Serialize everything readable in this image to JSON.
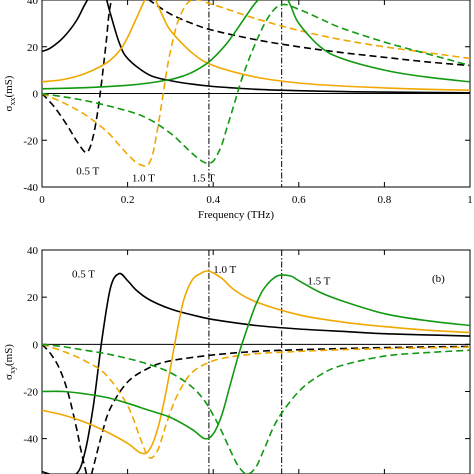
{
  "colors": {
    "0.5 T": "#000000",
    "1.0 T": "#f0a800",
    "1.5 T": "#119911"
  },
  "chart_data": [
    {
      "type": "line",
      "title": "",
      "xlabel": "Frequency (THz)",
      "ylabel": "σ_xx (mS)",
      "ylabel_main": "σ",
      "ylabel_sub": "xx",
      "ylabel_unit": "(mS)",
      "xlim": [
        0,
        1
      ],
      "ylim": [
        -40,
        40
      ],
      "xticks": [
        "0",
        "0.2",
        "0.4",
        "0.6",
        "0.8",
        "1"
      ],
      "yticks": [
        "40",
        "20",
        "0",
        "-20",
        "-40"
      ],
      "vlines": [
        0.39,
        0.56
      ],
      "annotations": [
        {
          "text": "0.5 T",
          "x": 0.08,
          "y": -33
        },
        {
          "text": "1.0 T",
          "x": 0.21,
          "y": -36
        },
        {
          "text": "1.5 T",
          "x": 0.35,
          "y": -36
        }
      ],
      "series": [
        {
          "field": "0.5 T",
          "component": "Re",
          "style": "solid",
          "x": [
            0,
            0.02,
            0.05,
            0.08,
            0.1,
            0.12,
            0.14,
            0.16,
            0.18,
            0.2,
            0.25,
            0.3,
            0.35,
            0.4,
            0.5,
            0.6,
            0.7,
            0.8,
            1.0
          ],
          "y": [
            18,
            19.5,
            24,
            31,
            38,
            44,
            46,
            34,
            22,
            15,
            8,
            5.5,
            4,
            3,
            1.8,
            1.2,
            0.8,
            0.6,
            0.3
          ]
        },
        {
          "field": "0.5 T",
          "component": "Im",
          "style": "dashed",
          "x": [
            0,
            0.03,
            0.06,
            0.08,
            0.1,
            0.11,
            0.12,
            0.13,
            0.14,
            0.15,
            0.16,
            0.18,
            0.2,
            0.25,
            0.3,
            0.35,
            0.4,
            0.5,
            0.6,
            0.7,
            0.8,
            0.9,
            1.0
          ],
          "y": [
            0,
            -6,
            -14,
            -20,
            -25,
            -24,
            -18,
            -8,
            6,
            22,
            38,
            48,
            46,
            40,
            34,
            30,
            27,
            23,
            20,
            17.5,
            15.5,
            13.5,
            12
          ]
        },
        {
          "field": "1.0 T",
          "component": "Re",
          "style": "solid",
          "x": [
            0,
            0.05,
            0.1,
            0.15,
            0.18,
            0.2,
            0.22,
            0.24,
            0.25,
            0.26,
            0.28,
            0.3,
            0.35,
            0.4,
            0.5,
            0.6,
            0.7,
            0.8,
            0.9,
            1.0
          ],
          "y": [
            5,
            6,
            8.5,
            13,
            18,
            24,
            32,
            40,
            44,
            42,
            34,
            27,
            17.5,
            12,
            7,
            4.5,
            3.2,
            2.4,
            1.8,
            1.4
          ]
        },
        {
          "field": "1.0 T",
          "component": "Im",
          "style": "dashed",
          "x": [
            0,
            0.05,
            0.1,
            0.15,
            0.18,
            0.2,
            0.22,
            0.24,
            0.25,
            0.26,
            0.27,
            0.28,
            0.29,
            0.3,
            0.32,
            0.35,
            0.4,
            0.5,
            0.6,
            0.7,
            0.8,
            0.9,
            1.0
          ],
          "y": [
            0,
            -4,
            -9,
            -16,
            -22,
            -26,
            -29.5,
            -31,
            -30,
            -25,
            -15,
            -4,
            8,
            18,
            32,
            40,
            38,
            32,
            27,
            23,
            20,
            17.5,
            15
          ]
        },
        {
          "field": "1.5 T",
          "component": "Re",
          "style": "solid",
          "x": [
            0,
            0.1,
            0.2,
            0.25,
            0.3,
            0.33,
            0.35,
            0.37,
            0.39,
            0.41,
            0.43,
            0.45,
            0.48,
            0.5,
            0.53,
            0.55,
            0.56,
            0.58,
            0.6,
            0.65,
            0.7,
            0.8,
            0.9,
            1.0
          ],
          "y": [
            2,
            2.5,
            3.5,
            4.5,
            6,
            7.5,
            9,
            11,
            13.5,
            17,
            21,
            26,
            34,
            39,
            44,
            46,
            45,
            38,
            30,
            20,
            15,
            10,
            7,
            5
          ]
        },
        {
          "field": "1.5 T",
          "component": "Im",
          "style": "dashed",
          "x": [
            0,
            0.1,
            0.2,
            0.25,
            0.3,
            0.33,
            0.35,
            0.37,
            0.38,
            0.39,
            0.4,
            0.41,
            0.42,
            0.43,
            0.44,
            0.45,
            0.47,
            0.5,
            0.53,
            0.56,
            0.6,
            0.65,
            0.7,
            0.8,
            0.9,
            1.0
          ],
          "y": [
            0,
            -3,
            -7.5,
            -11,
            -17,
            -22,
            -25.5,
            -28.5,
            -29.5,
            -29.8,
            -29,
            -26,
            -22,
            -16,
            -10,
            -4,
            8,
            22,
            33,
            38,
            36,
            32,
            28,
            22,
            17,
            12
          ]
        }
      ]
    },
    {
      "type": "line",
      "title": "",
      "xlabel": "",
      "ylabel": "σ_xy (mS)",
      "ylabel_main": "σ",
      "ylabel_sub": "xy",
      "ylabel_unit": "(mS)",
      "xlim": [
        0,
        1
      ],
      "ylim": [
        -55,
        40
      ],
      "xticks": [],
      "yticks": [
        "40",
        "20",
        "0",
        "-20",
        "-40"
      ],
      "vlines": [
        0.39,
        0.56
      ],
      "panel_label": "(b)",
      "annotations": [
        {
          "text": "0.5 T",
          "x": 0.07,
          "y": 30
        },
        {
          "text": "1.0 T",
          "x": 0.4,
          "y": 32
        },
        {
          "text": "1.5 T",
          "x": 0.62,
          "y": 27
        }
      ],
      "series": [
        {
          "field": "0.5 T",
          "component": "Re",
          "style": "solid",
          "x": [
            0,
            0.04,
            0.08,
            0.1,
            0.12,
            0.14,
            0.16,
            0.18,
            0.2,
            0.22,
            0.25,
            0.3,
            0.35,
            0.4,
            0.5,
            0.6,
            0.7,
            0.8,
            0.9,
            1.0
          ],
          "y": [
            -54,
            -56,
            -55,
            -46,
            -26,
            2,
            24,
            30,
            27,
            23,
            19,
            15,
            12.5,
            10.5,
            8,
            6.5,
            5.5,
            4.5,
            4,
            3.5
          ]
        },
        {
          "field": "0.5 T",
          "component": "Im",
          "style": "dashed",
          "x": [
            0,
            0.02,
            0.04,
            0.06,
            0.08,
            0.09,
            0.1,
            0.11,
            0.12,
            0.14,
            0.16,
            0.2,
            0.25,
            0.3,
            0.4,
            0.5,
            0.6,
            0.7,
            0.8,
            0.9,
            1.0
          ],
          "y": [
            0,
            -4,
            -10,
            -20,
            -35,
            -44,
            -52,
            -58,
            -52,
            -38,
            -27,
            -16,
            -10,
            -7,
            -4.5,
            -3,
            -2.3,
            -1.8,
            -1.4,
            -1.1,
            -0.9
          ]
        },
        {
          "field": "1.0 T",
          "component": "Re",
          "style": "solid",
          "x": [
            0,
            0.05,
            0.1,
            0.15,
            0.2,
            0.23,
            0.25,
            0.27,
            0.29,
            0.31,
            0.33,
            0.35,
            0.37,
            0.39,
            0.42,
            0.45,
            0.5,
            0.6,
            0.7,
            0.8,
            0.9,
            1.0
          ],
          "y": [
            -28,
            -30,
            -33,
            -37,
            -42,
            -46,
            -45,
            -36,
            -20,
            0,
            18,
            27,
            30,
            31,
            28,
            23,
            18,
            12.5,
            9.5,
            7.5,
            6,
            5
          ]
        },
        {
          "field": "1.0 T",
          "component": "Im",
          "style": "dashed",
          "x": [
            0,
            0.05,
            0.1,
            0.15,
            0.2,
            0.23,
            0.25,
            0.27,
            0.29,
            0.31,
            0.33,
            0.35,
            0.38,
            0.42,
            0.5,
            0.6,
            0.7,
            0.8,
            0.9,
            1.0
          ],
          "y": [
            0,
            -3,
            -7,
            -13,
            -26,
            -40,
            -48,
            -45,
            -34,
            -24,
            -17,
            -12,
            -8.5,
            -6,
            -4,
            -3,
            -2.3,
            -1.8,
            -1.5,
            -1.2
          ]
        },
        {
          "field": "1.5 T",
          "component": "Re",
          "style": "solid",
          "x": [
            0,
            0.05,
            0.1,
            0.15,
            0.2,
            0.25,
            0.3,
            0.35,
            0.38,
            0.4,
            0.42,
            0.44,
            0.46,
            0.48,
            0.5,
            0.52,
            0.55,
            0.58,
            0.6,
            0.65,
            0.7,
            0.8,
            0.9,
            1.0
          ],
          "y": [
            -20,
            -20,
            -21,
            -22.5,
            -25,
            -28,
            -31,
            -36,
            -40,
            -38,
            -30,
            -17,
            -4,
            7,
            17,
            24,
            29,
            29,
            27,
            22,
            18.5,
            13,
            10,
            8
          ]
        },
        {
          "field": "1.5 T",
          "component": "Im",
          "style": "dashed",
          "x": [
            0,
            0.05,
            0.1,
            0.15,
            0.2,
            0.25,
            0.3,
            0.35,
            0.38,
            0.4,
            0.42,
            0.44,
            0.46,
            0.48,
            0.5,
            0.52,
            0.55,
            0.6,
            0.65,
            0.7,
            0.8,
            0.9,
            1.0
          ],
          "y": [
            0,
            -1,
            -2.5,
            -4,
            -6,
            -8.5,
            -12,
            -18,
            -24,
            -30,
            -37,
            -45,
            -52,
            -55,
            -52,
            -44,
            -32,
            -20,
            -13,
            -9,
            -5,
            -3.5,
            -2.5
          ]
        }
      ]
    }
  ]
}
